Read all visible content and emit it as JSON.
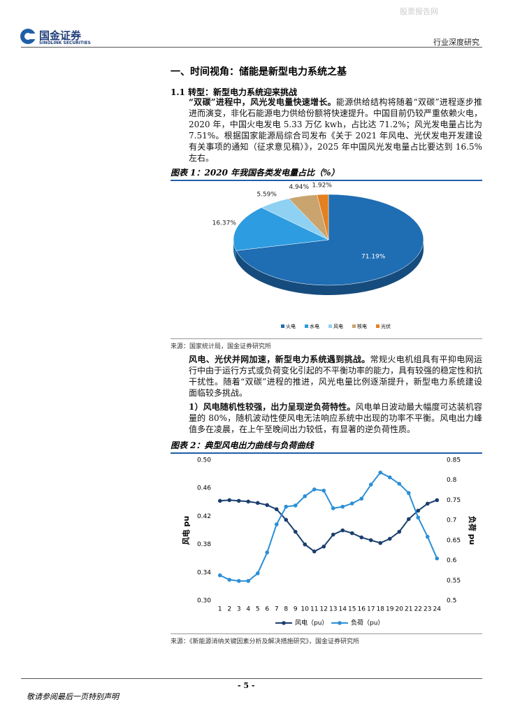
{
  "watermark": "股票报告网",
  "header": {
    "logo_cn": "国金证券",
    "logo_en": "SINOLINK SECURITIES",
    "report_type": "行业深度研究"
  },
  "section_title": "一、时间视角：储能是新型电力系统之基",
  "subsection_title": "1.1 转型：新型电力系统迎来挑战",
  "paragraphs": [
    {
      "lead": "“双碳”进程中，风光发电量快速增长。",
      "text": "能源供给结构将随着“双碳”进程逐步推进而演变，非化石能源电力供给份额将快速提升。中国目前仍较严重依赖火电，2020 年，中国火电发电 5.33 万亿 kwh，占比达 71.2%；风光发电量占比为 7.51%。根据国家能源局综合司发布《关于 2021 年风电、光伏发电开发建设有关事项的通知（征求意见稿）》，2025 年中国风光发电量占比要达到 16.5%左右。"
    },
    {
      "lead": "风电、光伏并网加速，新型电力系统遇到挑战。",
      "text": "常规火电机组具有平抑电网运行中由于运行方式或负荷变化引起的不平衡功率的能力，具有较强的稳定性和抗干扰性。随着“双碳”进程的推进，风光电量比例逐渐提升，新型电力系统建设面临较多挑战。"
    },
    {
      "lead": "1）风电随机性较强，出力呈现逆负荷特性。",
      "text": "风电单日波动最大幅度可达装机容量的 80%，随机波动性使风电无法响应系统中出现的功率不平衡。风电出力峰值多在凌晨，在上午至晚间出力较低，有显著的逆负荷性质。"
    }
  ],
  "footer": {
    "page": "- 5 -",
    "disclaimer": "敬请参阅最后一页特别声明"
  },
  "chart_data": [
    {
      "type": "pie",
      "title": "图表 1：2020 年我国各类发电量占比（%）",
      "source": "来源：国家统计局，国金证券研究所",
      "categories": [
        "火电",
        "水电",
        "风电",
        "核电",
        "光伏"
      ],
      "values": [
        71.19,
        16.37,
        5.59,
        4.94,
        1.92
      ],
      "value_labels": [
        "71.19%",
        "16.37%",
        "5.59%",
        "4.94%",
        "1.92%"
      ],
      "colors": [
        "#1f6db3",
        "#2d9ce0",
        "#8fd1f2",
        "#c9a46f",
        "#e4801f"
      ],
      "legend": "bottom"
    },
    {
      "type": "line",
      "title": "图表 2：典型风电出力曲线与负荷曲线",
      "source": "来源：《新能源消纳关键因素分析及解决措施研究》，国金证券研究所",
      "categories": [
        "1",
        "2",
        "3",
        "4",
        "5",
        "6",
        "7",
        "8",
        "9",
        "10",
        "11",
        "12",
        "13",
        "14",
        "15",
        "16",
        "17",
        "18",
        "19",
        "20",
        "21",
        "22",
        "23",
        "24"
      ],
      "ylabel": "风电 pu",
      "y2label": "负荷 pu",
      "ylim": [
        0.3,
        0.5
      ],
      "yticks": [
        {
          "value": 0.3,
          "label": "0.30"
        },
        0.34,
        0.38,
        0.42,
        0.46,
        {
          "value": 0.5,
          "label": "0.50"
        }
      ],
      "y2lim": [
        0.5,
        0.85
      ],
      "y2ticks": [
        0.5,
        0.55,
        0.6,
        0.65,
        0.7,
        0.75,
        0.8,
        0.85
      ],
      "series": [
        {
          "name": "风电（pu）",
          "color": "#1a3f6e",
          "values": [
            0.442,
            0.443,
            0.442,
            0.441,
            0.439,
            0.436,
            0.43,
            0.415,
            0.398,
            0.38,
            0.37,
            0.377,
            0.394,
            0.4,
            0.396,
            0.39,
            0.386,
            0.382,
            0.388,
            0.398,
            0.416,
            0.428,
            0.438,
            0.443
          ]
        },
        {
          "name": "负荷（pu）",
          "color": "#2b8fd6",
          "axis": "y2",
          "values": [
            0.563,
            0.552,
            0.549,
            0.549,
            0.568,
            0.62,
            0.69,
            0.734,
            0.737,
            0.76,
            0.777,
            0.774,
            0.73,
            0.734,
            0.742,
            0.754,
            0.789,
            0.819,
            0.807,
            0.791,
            0.768,
            0.707,
            0.659,
            0.605
          ]
        }
      ],
      "legend": "bottom",
      "grid": false
    }
  ]
}
